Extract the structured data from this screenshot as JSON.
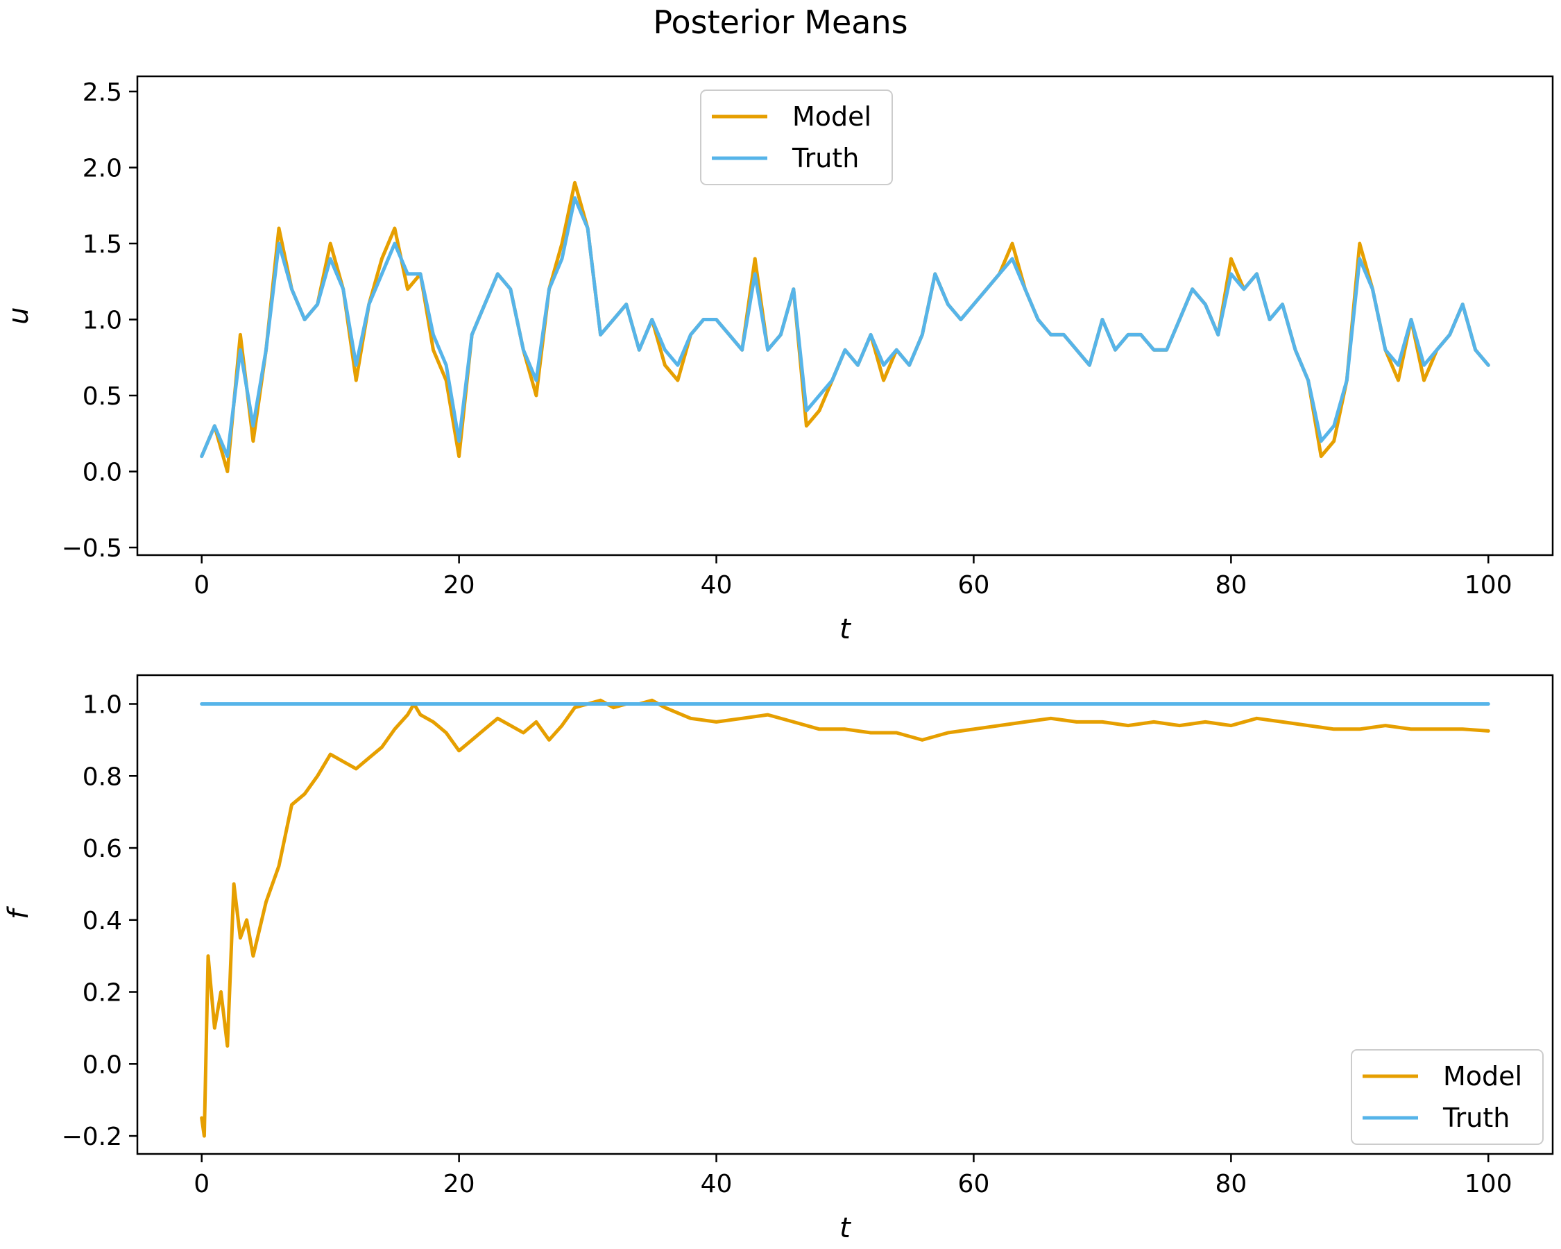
{
  "chart_data": {
    "title": "Posterior Means",
    "colors": {
      "model": "#E69F00",
      "truth": "#56B4E9"
    },
    "panels": [
      {
        "type": "line",
        "xlabel": "t",
        "ylabel": "u",
        "xlim": [
          -5,
          105
        ],
        "ylim": [
          -0.55,
          2.6
        ],
        "xticks": [
          0,
          20,
          40,
          60,
          80,
          100
        ],
        "yticks": [
          -0.5,
          0.0,
          0.5,
          1.0,
          1.5,
          2.0,
          2.5
        ],
        "ytick_labels": [
          "−0.5",
          "0.0",
          "0.5",
          "1.0",
          "1.5",
          "2.0",
          "2.5"
        ],
        "legend": {
          "placement": "upper-center",
          "entries": [
            "Model",
            "Truth"
          ]
        },
        "series": [
          {
            "name": "Model",
            "x": [
              0,
              1,
              2,
              3,
              4,
              5,
              6,
              7,
              8,
              9,
              10,
              11,
              12,
              13,
              14,
              15,
              16,
              17,
              18,
              19,
              20,
              21,
              22,
              23,
              24,
              25,
              26,
              27,
              28,
              29,
              30,
              31,
              32,
              33,
              34,
              35,
              36,
              37,
              38,
              39,
              40,
              41,
              42,
              43,
              44,
              45,
              46,
              47,
              48,
              49,
              50,
              51,
              52,
              53,
              54,
              55,
              56,
              57,
              58,
              59,
              60,
              61,
              62,
              63,
              64,
              65,
              66,
              67,
              68,
              69,
              70,
              71,
              72,
              73,
              74,
              75,
              76,
              77,
              78,
              79,
              80,
              81,
              82,
              83,
              84,
              85,
              86,
              87,
              88,
              89,
              90,
              91,
              92,
              93,
              94,
              95,
              96,
              97,
              98,
              99,
              100
            ],
            "y": [
              0.1,
              0.3,
              0.0,
              0.9,
              0.2,
              0.8,
              1.6,
              1.2,
              1.0,
              1.1,
              1.5,
              1.2,
              0.6,
              1.1,
              1.4,
              1.6,
              1.2,
              1.3,
              0.8,
              0.6,
              0.1,
              0.9,
              1.1,
              1.3,
              1.2,
              0.8,
              0.5,
              1.2,
              1.5,
              1.9,
              1.6,
              0.9,
              1.0,
              1.1,
              0.8,
              1.0,
              0.7,
              0.6,
              0.9,
              1.0,
              1.0,
              0.9,
              0.8,
              1.4,
              0.8,
              0.9,
              1.2,
              0.3,
              0.4,
              0.6,
              0.8,
              0.7,
              0.9,
              0.6,
              0.8,
              0.7,
              0.9,
              1.3,
              1.1,
              1.0,
              1.1,
              1.2,
              1.3,
              1.5,
              1.2,
              1.0,
              0.9,
              0.9,
              0.8,
              0.7,
              1.0,
              0.8,
              0.9,
              0.9,
              0.8,
              0.8,
              1.0,
              1.2,
              1.1,
              0.9,
              1.4,
              1.2,
              1.3,
              1.0,
              1.1,
              0.8,
              0.6,
              0.1,
              0.2,
              0.6,
              1.5,
              1.2,
              0.8,
              0.6,
              1.0,
              0.6,
              0.8,
              0.9,
              1.1,
              0.8,
              0.7
            ]
          },
          {
            "name": "Truth",
            "x": [
              0,
              1,
              2,
              3,
              4,
              5,
              6,
              7,
              8,
              9,
              10,
              11,
              12,
              13,
              14,
              15,
              16,
              17,
              18,
              19,
              20,
              21,
              22,
              23,
              24,
              25,
              26,
              27,
              28,
              29,
              30,
              31,
              32,
              33,
              34,
              35,
              36,
              37,
              38,
              39,
              40,
              41,
              42,
              43,
              44,
              45,
              46,
              47,
              48,
              49,
              50,
              51,
              52,
              53,
              54,
              55,
              56,
              57,
              58,
              59,
              60,
              61,
              62,
              63,
              64,
              65,
              66,
              67,
              68,
              69,
              70,
              71,
              72,
              73,
              74,
              75,
              76,
              77,
              78,
              79,
              80,
              81,
              82,
              83,
              84,
              85,
              86,
              87,
              88,
              89,
              90,
              91,
              92,
              93,
              94,
              95,
              96,
              97,
              98,
              99,
              100
            ],
            "y": [
              0.1,
              0.3,
              0.1,
              0.8,
              0.3,
              0.8,
              1.5,
              1.2,
              1.0,
              1.1,
              1.4,
              1.2,
              0.7,
              1.1,
              1.3,
              1.5,
              1.3,
              1.3,
              0.9,
              0.7,
              0.2,
              0.9,
              1.1,
              1.3,
              1.2,
              0.8,
              0.6,
              1.2,
              1.4,
              1.8,
              1.6,
              0.9,
              1.0,
              1.1,
              0.8,
              1.0,
              0.8,
              0.7,
              0.9,
              1.0,
              1.0,
              0.9,
              0.8,
              1.3,
              0.8,
              0.9,
              1.2,
              0.4,
              0.5,
              0.6,
              0.8,
              0.7,
              0.9,
              0.7,
              0.8,
              0.7,
              0.9,
              1.3,
              1.1,
              1.0,
              1.1,
              1.2,
              1.3,
              1.4,
              1.2,
              1.0,
              0.9,
              0.9,
              0.8,
              0.7,
              1.0,
              0.8,
              0.9,
              0.9,
              0.8,
              0.8,
              1.0,
              1.2,
              1.1,
              0.9,
              1.3,
              1.2,
              1.3,
              1.0,
              1.1,
              0.8,
              0.6,
              0.2,
              0.3,
              0.6,
              1.4,
              1.2,
              0.8,
              0.7,
              1.0,
              0.7,
              0.8,
              0.9,
              1.1,
              0.8,
              0.7
            ]
          }
        ]
      },
      {
        "type": "line",
        "xlabel": "t",
        "ylabel": "f",
        "xlim": [
          -5,
          105
        ],
        "ylim": [
          -0.25,
          1.08
        ],
        "xticks": [
          0,
          20,
          40,
          60,
          80,
          100
        ],
        "yticks": [
          -0.2,
          0.0,
          0.2,
          0.4,
          0.6,
          0.8,
          1.0
        ],
        "ytick_labels": [
          "−0.2",
          "0.0",
          "0.2",
          "0.4",
          "0.6",
          "0.8",
          "1.0"
        ],
        "legend": {
          "placement": "lower-right",
          "entries": [
            "Model",
            "Truth"
          ]
        },
        "series": [
          {
            "name": "Model",
            "x": [
              0,
              0.2,
              0.5,
              1,
              1.5,
              2,
              2.5,
              3,
              3.5,
              4,
              5,
              6,
              7,
              8,
              9,
              10,
              11,
              12,
              13,
              14,
              15,
              16,
              16.5,
              17,
              18,
              19,
              20,
              21,
              22,
              23,
              24,
              25,
              26,
              27,
              28,
              29,
              30,
              31,
              32,
              33,
              34,
              35,
              36,
              38,
              40,
              42,
              44,
              46,
              48,
              50,
              52,
              54,
              56,
              58,
              60,
              62,
              64,
              66,
              68,
              70,
              72,
              74,
              76,
              78,
              80,
              82,
              84,
              86,
              88,
              90,
              92,
              94,
              96,
              98,
              100
            ],
            "y": [
              -0.15,
              -0.2,
              0.3,
              0.1,
              0.2,
              0.05,
              0.5,
              0.35,
              0.4,
              0.3,
              0.45,
              0.55,
              0.72,
              0.75,
              0.8,
              0.86,
              0.84,
              0.82,
              0.85,
              0.88,
              0.93,
              0.97,
              1.0,
              0.97,
              0.95,
              0.92,
              0.87,
              0.9,
              0.93,
              0.96,
              0.94,
              0.92,
              0.95,
              0.9,
              0.94,
              0.99,
              1.0,
              1.01,
              0.99,
              1.0,
              1.0,
              1.01,
              0.99,
              0.96,
              0.95,
              0.96,
              0.97,
              0.95,
              0.93,
              0.93,
              0.92,
              0.92,
              0.9,
              0.92,
              0.93,
              0.94,
              0.95,
              0.96,
              0.95,
              0.95,
              0.94,
              0.95,
              0.94,
              0.95,
              0.94,
              0.96,
              0.95,
              0.94,
              0.93,
              0.93,
              0.94,
              0.93,
              0.93,
              0.93,
              0.925
            ]
          },
          {
            "name": "Truth",
            "x": [
              0,
              100
            ],
            "y": [
              1.0,
              1.0
            ]
          }
        ]
      }
    ]
  }
}
